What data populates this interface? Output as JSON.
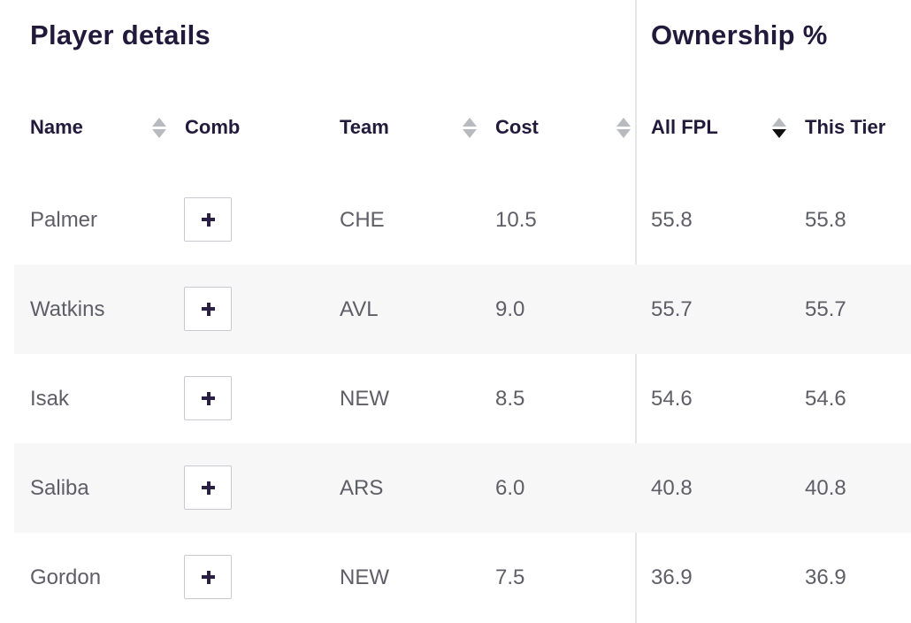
{
  "groups": {
    "player_details": "Player details",
    "ownership": "Ownership %"
  },
  "columns": {
    "name": "Name",
    "comb": "Comb",
    "team": "Team",
    "cost": "Cost",
    "all_fpl": "All FPL",
    "this_tier": "This Tier"
  },
  "sort_state": {
    "active_column": "all_fpl",
    "direction": "descending"
  },
  "icons": {
    "sort": "sort-icon",
    "add": "plus-icon"
  },
  "rows": [
    {
      "name": "Palmer",
      "team": "CHE",
      "cost": "10.5",
      "all_fpl": "55.8",
      "this_tier": "55.8"
    },
    {
      "name": "Watkins",
      "team": "AVL",
      "cost": "9.0",
      "all_fpl": "55.7",
      "this_tier": "55.7"
    },
    {
      "name": "Isak",
      "team": "NEW",
      "cost": "8.5",
      "all_fpl": "54.6",
      "this_tier": "54.6"
    },
    {
      "name": "Saliba",
      "team": "ARS",
      "cost": "6.0",
      "all_fpl": "40.8",
      "this_tier": "40.8"
    },
    {
      "name": "Gordon",
      "team": "NEW",
      "cost": "7.5",
      "all_fpl": "36.9",
      "this_tier": "36.9"
    }
  ]
}
